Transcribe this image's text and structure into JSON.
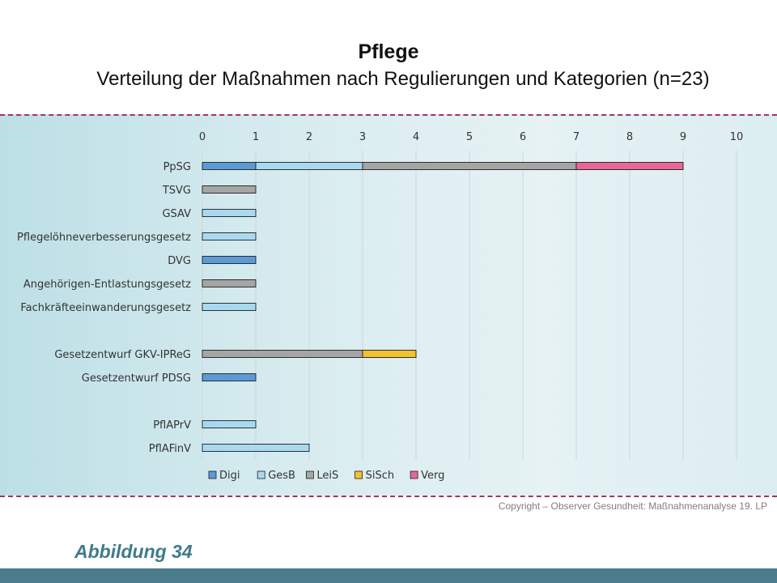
{
  "page": {
    "copyright": "Copyright – Observer Gesundheit: Maßnahmenanalyse 19. LP",
    "figure_label": "Abbildung 34"
  },
  "chart_data": {
    "type": "bar",
    "orientation": "horizontal",
    "stacked": true,
    "title": "Pflege",
    "subtitle": "Verteilung der Maßnahmen nach Regulierungen und Kategorien (n=23)",
    "xlim": [
      0,
      10
    ],
    "x_ticks": [
      0,
      1,
      2,
      3,
      4,
      5,
      6,
      7,
      8,
      9,
      10
    ],
    "x_axis_position": "top",
    "grid": true,
    "legend_position": "bottom",
    "categories": [
      "PpSG",
      "TSVG",
      "GSAV",
      "Pflegelöhneverbesserungsgesetz",
      "DVG",
      "Angehörigen-Entlastungsgesetz",
      "Fachkräfteeinwanderungsgesetz",
      "",
      "Gesetzentwurf GKV-IPReG",
      "Gesetzentwurf PDSG",
      "",
      "PflAPrV",
      "PflAFinV"
    ],
    "series": [
      {
        "name": "Digi",
        "color": "#5b9bd5",
        "values": [
          1,
          0,
          0,
          0,
          1,
          0,
          0,
          0,
          0,
          1,
          0,
          0,
          0
        ]
      },
      {
        "name": "GesB",
        "color": "#a9d9f0",
        "values": [
          2,
          0,
          1,
          1,
          0,
          0,
          1,
          0,
          0,
          0,
          0,
          1,
          2
        ]
      },
      {
        "name": "LeiS",
        "color": "#a5a5a5",
        "values": [
          4,
          1,
          0,
          0,
          0,
          1,
          0,
          0,
          3,
          0,
          0,
          0,
          0
        ]
      },
      {
        "name": "SiSch",
        "color": "#f2c12e",
        "values": [
          0,
          0,
          0,
          0,
          0,
          0,
          0,
          0,
          1,
          0,
          0,
          0,
          0
        ]
      },
      {
        "name": "Verg",
        "color": "#e8679b",
        "values": [
          2,
          0,
          0,
          0,
          0,
          0,
          0,
          0,
          0,
          0,
          0,
          0,
          0
        ]
      }
    ]
  }
}
